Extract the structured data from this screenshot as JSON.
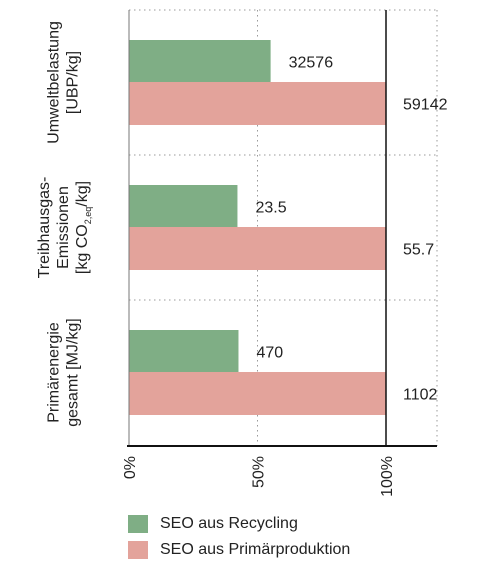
{
  "chart_data": {
    "type": "bar",
    "orientation": "horizontal",
    "x_unit": "percent of Primärproduktion",
    "xlim": [
      0,
      120
    ],
    "xticks": [
      {
        "value": 0,
        "label": "0%"
      },
      {
        "value": 50,
        "label": "50%"
      },
      {
        "value": 100,
        "label": "100%"
      }
    ],
    "grid": "dotted",
    "categories": [
      {
        "id": "umwelt",
        "lines": [
          "Umweltbelastung",
          "[UBP/kg]"
        ]
      },
      {
        "id": "thg",
        "lines": [
          "Treibhausgas-",
          "Emissionen",
          "[kg CO",
          "2,eq",
          "/kg]"
        ]
      },
      {
        "id": "energie",
        "lines": [
          "Primärenergie",
          "gesamt [MJ/kg]"
        ]
      }
    ],
    "series": [
      {
        "name": "SEO aus Recycling",
        "color": "#7fae85",
        "values": [
          55.1,
          42.2,
          42.6
        ],
        "labels": [
          "32576",
          "23.5",
          "470"
        ]
      },
      {
        "name": "SEO aus Primärproduktion",
        "color": "#e3a39b",
        "values": [
          100,
          100,
          100
        ],
        "labels": [
          "59142",
          "55.7",
          "1102"
        ]
      }
    ],
    "legend_position": "bottom"
  }
}
